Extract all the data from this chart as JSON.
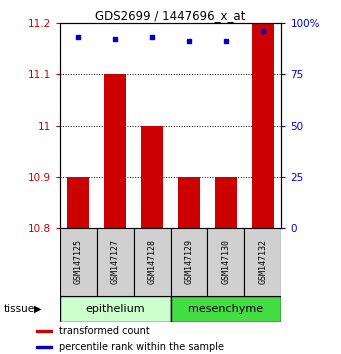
{
  "title": "GDS2699 / 1447696_x_at",
  "samples": [
    "GSM147125",
    "GSM147127",
    "GSM147128",
    "GSM147129",
    "GSM147130",
    "GSM147132"
  ],
  "bar_values": [
    10.9,
    11.1,
    11.0,
    10.9,
    10.9,
    11.2
  ],
  "bar_bottom": 10.8,
  "percentile_values": [
    93,
    92,
    93,
    91,
    91,
    96
  ],
  "percentile_scale_min": 0,
  "percentile_scale_max": 100,
  "ylim_min": 10.8,
  "ylim_max": 11.2,
  "yticks": [
    10.8,
    10.9,
    11.0,
    11.1,
    11.2
  ],
  "ytick_labels": [
    "10.8",
    "10.9",
    "11",
    "11.1",
    "11.2"
  ],
  "right_yticks": [
    0,
    25,
    50,
    75,
    100
  ],
  "right_ytick_labels": [
    "0",
    "25",
    "50",
    "75",
    "100%"
  ],
  "bar_color": "#cc0000",
  "dot_color": "#0000cc",
  "groups": [
    {
      "label": "epithelium",
      "start": 0,
      "end": 3,
      "color": "#ccffcc"
    },
    {
      "label": "mesenchyme",
      "start": 3,
      "end": 6,
      "color": "#44dd44"
    }
  ],
  "group_label": "tissue",
  "legend_items": [
    {
      "color": "#cc0000",
      "label": "transformed count"
    },
    {
      "color": "#0000cc",
      "label": "percentile rank within the sample"
    }
  ],
  "left_tick_color": "#cc0000",
  "right_tick_color": "#0000cc",
  "background_color": "#ffffff",
  "bar_width": 0.6,
  "sample_box_color": "#d0d0d0"
}
